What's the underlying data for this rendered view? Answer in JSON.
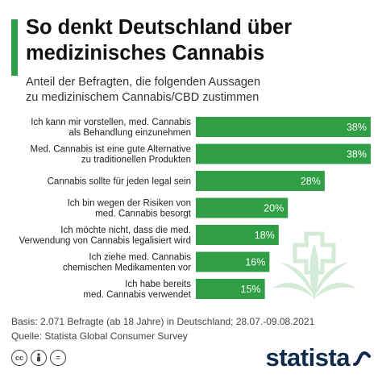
{
  "header": {
    "title_lines": [
      "So denkt Deutschland über",
      "medizinisches Cannabis"
    ],
    "subtitle_lines": [
      "Anteil der Befragten, die folgenden Aussagen",
      "zu medizinischem Cannabis/CBD zustimmen"
    ]
  },
  "chart_data": {
    "type": "bar",
    "orientation": "horizontal",
    "categories": [
      [
        "Ich kann mir vorstellen, med. Cannabis",
        "als Behandlung einzunehmen"
      ],
      [
        "Med. Cannabis ist eine gute Alternative",
        "zu traditionellen Produkten"
      ],
      [
        "Cannabis sollte für jeden legal sein"
      ],
      [
        "Ich bin wegen der Risiken von",
        "med. Cannabis besorgt"
      ],
      [
        "Ich möchte nicht, dass die med.",
        "Verwendung von Cannabis legalisiert wird"
      ],
      [
        "Ich ziehe med. Cannabis",
        "chemischen Medikamenten vor"
      ],
      [
        "Ich habe bereits",
        "med. Cannabis verwendet"
      ]
    ],
    "values": [
      38,
      38,
      28,
      20,
      18,
      16,
      15
    ],
    "value_labels": [
      "38%",
      "38%",
      "28%",
      "20%",
      "18%",
      "16%",
      "15%"
    ],
    "unit": "%",
    "xlim": [
      0,
      38
    ],
    "bar_color": "#2f9e44",
    "grid": false,
    "legend": "none"
  },
  "footer": {
    "lines": [
      "Basis: 2.071 Befragte (ab 18 Jahre) in Deutschland; 28.07.-09.08.2021",
      "Quelle: Statista Global Consumer Survey"
    ]
  },
  "license_icons": [
    "cc",
    "by",
    "="
  ],
  "brand": {
    "name": "statista",
    "color": "#0f2a4a"
  },
  "decoration": {
    "icon": "cannabis-leaf-with-cross-icon",
    "color": "#cfe8d2"
  }
}
